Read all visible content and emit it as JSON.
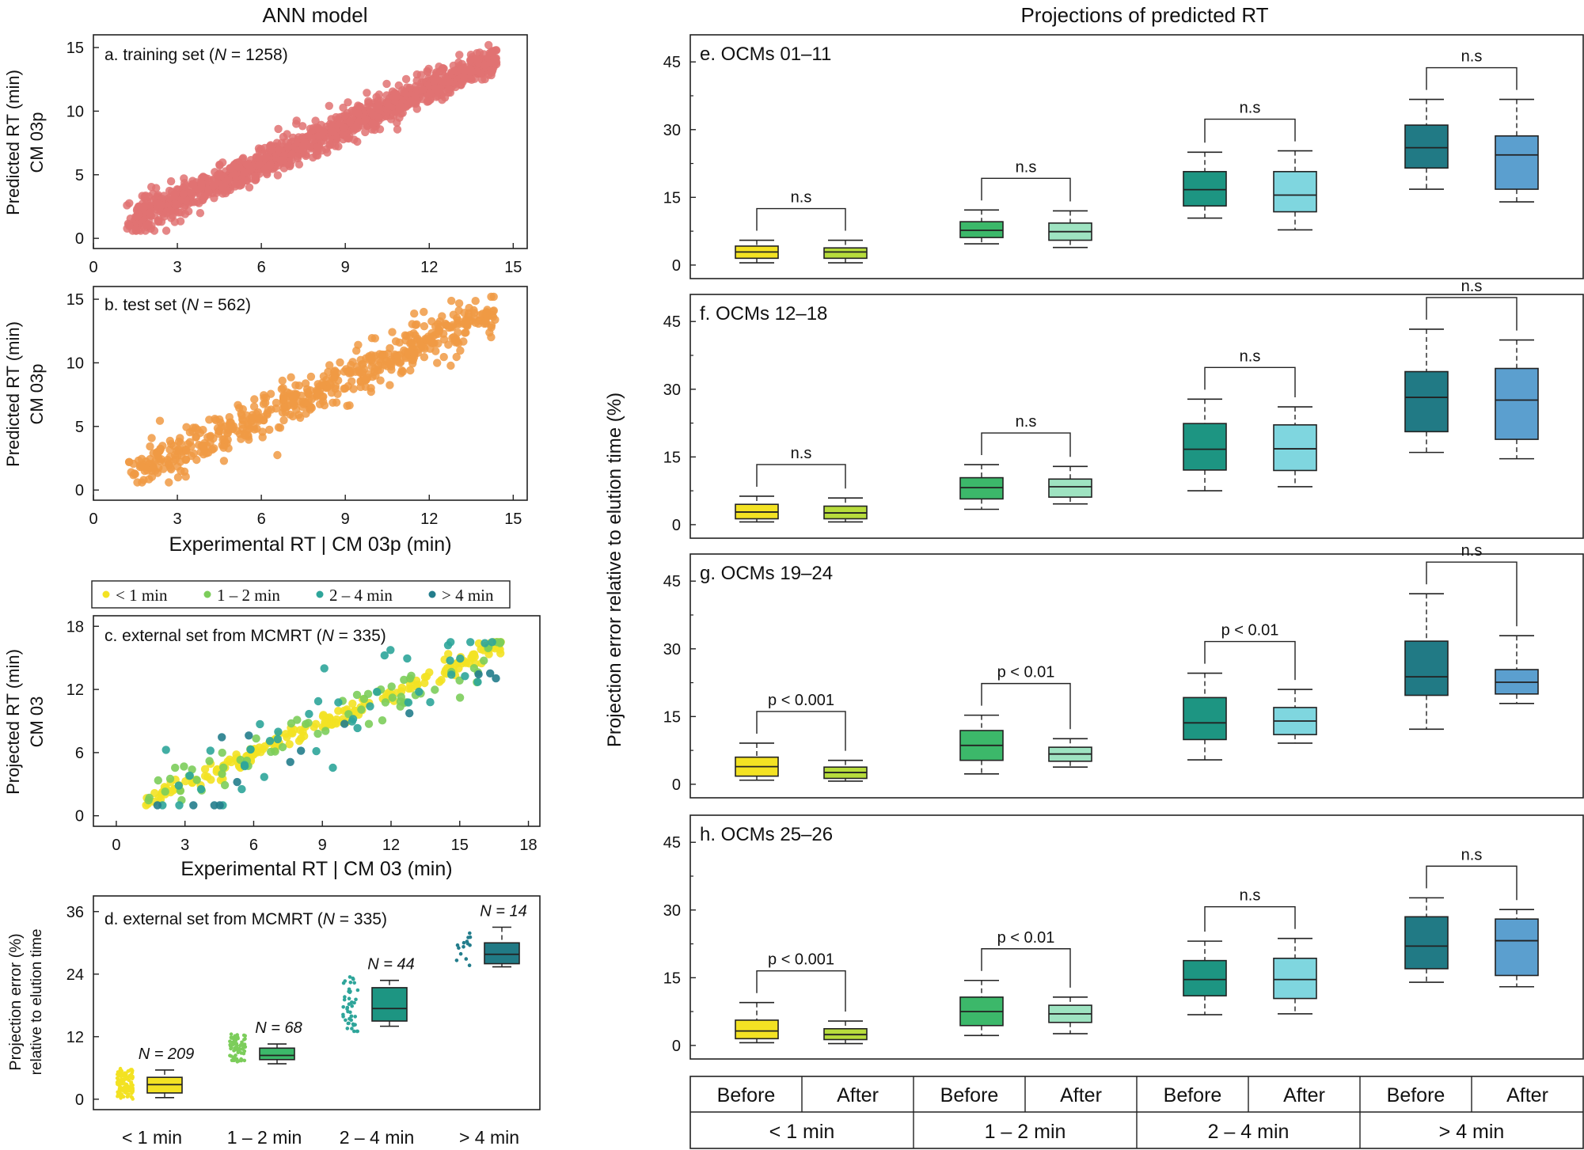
{
  "titles": {
    "left": "ANN model",
    "right": "Projections of predicted RT"
  },
  "colors": {
    "yellow": "#f3e223",
    "yellowgreen": "#b7dc3c",
    "green": "#3cb86a",
    "mint": "#9ee3c1",
    "teal": "#1d9582",
    "cyan": "#7fd6df",
    "darkteal": "#217a85",
    "blue": "#5b9fcf",
    "salmon": "#e07272",
    "orange": "#f09a44",
    "dotgreen": "#7ccd5b",
    "dotteal": "#2ea59a",
    "dotdark": "#237d8c",
    "labelYellow": "#c8b400",
    "labelGreen": "#2f7f2f",
    "labelTeal": "#1f8a7a",
    "labelDark": "#23567a"
  },
  "panel_a": {
    "label": "a. training set (",
    "n": "N",
    "rest": " = 1258)",
    "ylabel1": "Predicted RT (min)",
    "ylabel2": "CM 03p"
  },
  "panel_b": {
    "label": "b. test set (",
    "n": "N",
    "rest": " = 562)",
    "ylabel1": "Predicted RT (min)",
    "ylabel2": "CM 03p",
    "xlabel": "Experimental RT | CM 03p (min)"
  },
  "panel_c": {
    "label": "c. external set from MCMRT (",
    "n": "N",
    "rest": " = 335)",
    "ylabel1": "Projected RT (min)",
    "ylabel2": "CM 03",
    "xlabel": "Experimental RT | CM 03 (min)",
    "legend": [
      "< 1 min",
      "1 – 2 min",
      "2 – 4 min",
      "> 4 min"
    ]
  },
  "panel_d": {
    "label": "d. external set from MCMRT (",
    "n": "N",
    "rest": " = 335)",
    "ylabel1": "Projection error (%)",
    "ylabel2": "relative to elution time",
    "groups": [
      "< 1 min",
      "1 – 2 min",
      "2 – 4 min",
      "> 4 min"
    ],
    "counts": [
      "N = 209",
      "N = 68",
      "N = 44",
      "N = 14"
    ]
  },
  "right_ylabel": "Projection error relative to elution time (%)",
  "bottom_table": {
    "row1": [
      "Before",
      "After",
      "Before",
      "After",
      "Before",
      "After",
      "Before",
      "After"
    ],
    "row2": [
      "< 1 min",
      "1 – 2 min",
      "2 – 4 min",
      "> 4 min"
    ]
  },
  "right_panels": [
    {
      "title": "e. OCMs 01–11",
      "sig": [
        "n.s",
        "n.s",
        "n.s",
        "n.s"
      ]
    },
    {
      "title": "f. OCMs 12–18",
      "sig": [
        "n.s",
        "n.s",
        "n.s",
        "n.s"
      ]
    },
    {
      "title": "g. OCMs 19–24",
      "sig": [
        "p < 0.001",
        "p < 0.01",
        "p < 0.01",
        "n.s"
      ]
    },
    {
      "title": "h. OCMs 25–26",
      "sig": [
        "p < 0.001",
        "p < 0.01",
        "n.s",
        "n.s"
      ]
    }
  ],
  "chart_data": [
    {
      "type": "scatter",
      "title": "a. training set (N = 1258)",
      "xlabel": "",
      "ylabel": "Predicted RT (min) CM 03p",
      "xlim": [
        0,
        15.5
      ],
      "ylim": [
        -0.8,
        16
      ],
      "xticks": [
        0,
        3,
        6,
        9,
        12,
        15
      ],
      "yticks": [
        0,
        5,
        10,
        15
      ],
      "trend": {
        "slope": 0.97,
        "intercept": 0.1,
        "spread": 0.8,
        "xmin": 1.2,
        "xmax": 14.4,
        "n": 1258
      }
    },
    {
      "type": "scatter",
      "title": "b. test set (N = 562)",
      "xlabel": "Experimental RT | CM 03p (min)",
      "ylabel": "Predicted RT (min) CM 03p",
      "xlim": [
        0,
        15.5
      ],
      "ylim": [
        -0.8,
        16
      ],
      "xticks": [
        0,
        3,
        6,
        9,
        12,
        15
      ],
      "yticks": [
        0,
        5,
        10,
        15
      ],
      "trend": {
        "slope": 0.97,
        "intercept": 0.1,
        "spread": 1.1,
        "xmin": 1.2,
        "xmax": 14.4,
        "n": 562
      }
    },
    {
      "type": "scatter",
      "title": "c. external set from MCMRT (N = 335)",
      "xlabel": "Experimental RT | CM 03 (min)",
      "ylabel": "Projected RT (min) CM 03",
      "xlim": [
        -1,
        18.5
      ],
      "ylim": [
        -1,
        19
      ],
      "xticks": [
        0,
        3,
        6,
        9,
        12,
        15,
        18
      ],
      "yticks": [
        0,
        6,
        12,
        18
      ],
      "series": [
        {
          "name": "< 1 min",
          "color": "#f3e223",
          "n": 209,
          "spread": 0.5
        },
        {
          "name": "1 – 2 min",
          "color": "#7ccd5b",
          "n": 68,
          "spread": 1.2
        },
        {
          "name": "2 – 4 min",
          "color": "#2ea59a",
          "n": 44,
          "spread": 2.4
        },
        {
          "name": "> 4 min",
          "color": "#237d8c",
          "n": 14,
          "spread": 3.5
        }
      ]
    },
    {
      "type": "box",
      "title": "d. external set from MCMRT (N = 335)",
      "ylabel": "Projection error (%) relative to elution time",
      "ylim": [
        -2,
        39
      ],
      "yticks": [
        0,
        12,
        24,
        36
      ],
      "categories": [
        "< 1 min",
        "1 – 2 min",
        "2 – 4 min",
        "> 4 min"
      ],
      "boxes": [
        {
          "min": 0.3,
          "q1": 1.2,
          "median": 2.8,
          "q3": 4.2,
          "max": 5.6,
          "n": 209,
          "jitter": [
            0,
            6
          ],
          "color": "#f3e223",
          "dot": "#f3e223"
        },
        {
          "min": 6.8,
          "q1": 7.6,
          "median": 8.4,
          "q3": 9.8,
          "max": 10.6,
          "n": 68,
          "jitter": [
            7,
            12.5
          ],
          "color": "#3cb86a",
          "dot": "#7ccd5b"
        },
        {
          "min": 14,
          "q1": 15,
          "median": 17.4,
          "q3": 21.4,
          "max": 22.8,
          "n": 44,
          "jitter": [
            13,
            23.5
          ],
          "color": "#1d9582",
          "dot": "#2ea59a"
        },
        {
          "min": 25.4,
          "q1": 26,
          "median": 27.8,
          "q3": 30,
          "max": 33,
          "n": 14,
          "jitter": [
            24.5,
            32
          ],
          "color": "#217a85",
          "dot": "#237d8c"
        }
      ]
    },
    {
      "type": "box",
      "title": "e. OCMs 01–11",
      "ylim": [
        -3,
        51
      ],
      "yticks": [
        0,
        15,
        30,
        45
      ],
      "boxes": [
        {
          "min": 0.5,
          "q1": 1.5,
          "median": 2.9,
          "q3": 4.2,
          "max": 5.5
        },
        {
          "min": 0.5,
          "q1": 1.5,
          "median": 2.9,
          "q3": 3.8,
          "max": 5.5
        },
        {
          "min": 4.7,
          "q1": 6.1,
          "median": 7.7,
          "q3": 9.6,
          "max": 12.2
        },
        {
          "min": 3.9,
          "q1": 5.5,
          "median": 7.4,
          "q3": 9.3,
          "max": 12.0
        },
        {
          "min": 10.4,
          "q1": 13.1,
          "median": 16.7,
          "q3": 20.7,
          "max": 25.0
        },
        {
          "min": 7.8,
          "q1": 11.8,
          "median": 15.5,
          "q3": 20.7,
          "max": 25.3
        },
        {
          "min": 16.8,
          "q1": 21.5,
          "median": 26.0,
          "q3": 31.0,
          "max": 36.7
        },
        {
          "min": 14.0,
          "q1": 16.8,
          "median": 24.4,
          "q3": 28.6,
          "max": 36.7
        }
      ]
    },
    {
      "type": "box",
      "title": "f. OCMs 12–18",
      "ylim": [
        -3,
        51
      ],
      "yticks": [
        0,
        15,
        30,
        45
      ],
      "boxes": [
        {
          "min": 0.6,
          "q1": 1.3,
          "median": 2.8,
          "q3": 4.5,
          "max": 6.3
        },
        {
          "min": 0.6,
          "q1": 1.3,
          "median": 2.6,
          "q3": 4.1,
          "max": 5.9
        },
        {
          "min": 3.4,
          "q1": 5.7,
          "median": 8.2,
          "q3": 10.4,
          "max": 13.3
        },
        {
          "min": 4.6,
          "q1": 6.1,
          "median": 8.4,
          "q3": 10.1,
          "max": 12.9
        },
        {
          "min": 7.5,
          "q1": 12.1,
          "median": 16.7,
          "q3": 22.4,
          "max": 27.8
        },
        {
          "min": 8.4,
          "q1": 12.0,
          "median": 16.8,
          "q3": 22.1,
          "max": 26.1
        },
        {
          "min": 16.0,
          "q1": 20.6,
          "median": 28.2,
          "q3": 33.9,
          "max": 43.3
        },
        {
          "min": 14.6,
          "q1": 18.9,
          "median": 27.6,
          "q3": 34.6,
          "max": 40.9
        }
      ]
    },
    {
      "type": "box",
      "title": "g. OCMs 19–24",
      "ylim": [
        -3,
        51
      ],
      "yticks": [
        0,
        15,
        30,
        45
      ],
      "boxes": [
        {
          "min": 0.9,
          "q1": 1.8,
          "median": 3.9,
          "q3": 6.0,
          "max": 9.1
        },
        {
          "min": 0.7,
          "q1": 1.3,
          "median": 2.6,
          "q3": 3.8,
          "max": 5.3
        },
        {
          "min": 2.3,
          "q1": 5.3,
          "median": 8.6,
          "q3": 11.9,
          "max": 15.3
        },
        {
          "min": 3.8,
          "q1": 5.1,
          "median": 6.7,
          "q3": 8.2,
          "max": 10.1
        },
        {
          "min": 5.4,
          "q1": 9.9,
          "median": 13.6,
          "q3": 19.2,
          "max": 24.6
        },
        {
          "min": 9.1,
          "q1": 11.0,
          "median": 14.0,
          "q3": 17.0,
          "max": 21.0
        },
        {
          "min": 12.2,
          "q1": 19.7,
          "median": 23.8,
          "q3": 31.7,
          "max": 42.2
        },
        {
          "min": 17.9,
          "q1": 20.0,
          "median": 22.6,
          "q3": 25.4,
          "max": 32.9
        }
      ]
    },
    {
      "type": "box",
      "title": "h. OCMs 25–26",
      "ylim": [
        -3,
        51
      ],
      "yticks": [
        0,
        15,
        30,
        45
      ],
      "boxes": [
        {
          "min": 0.6,
          "q1": 1.5,
          "median": 3.2,
          "q3": 5.6,
          "max": 9.5
        },
        {
          "min": 0.4,
          "q1": 1.3,
          "median": 2.4,
          "q3": 3.7,
          "max": 5.4
        },
        {
          "min": 2.2,
          "q1": 4.4,
          "median": 7.5,
          "q3": 10.7,
          "max": 14.4
        },
        {
          "min": 2.6,
          "q1": 5.1,
          "median": 7.0,
          "q3": 8.9,
          "max": 10.7
        },
        {
          "min": 6.8,
          "q1": 11.0,
          "median": 14.6,
          "q3": 18.8,
          "max": 23.1
        },
        {
          "min": 7.0,
          "q1": 10.4,
          "median": 14.6,
          "q3": 19.3,
          "max": 23.7
        },
        {
          "min": 14.0,
          "q1": 17.0,
          "median": 22.0,
          "q3": 28.5,
          "max": 32.7
        },
        {
          "min": 13.0,
          "q1": 15.5,
          "median": 23.2,
          "q3": 28.0,
          "max": 30.1
        }
      ]
    }
  ]
}
